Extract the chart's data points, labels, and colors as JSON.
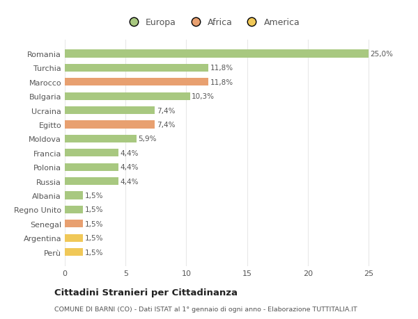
{
  "categories": [
    "Romania",
    "Turchia",
    "Marocco",
    "Bulgaria",
    "Ucraina",
    "Egitto",
    "Moldova",
    "Francia",
    "Polonia",
    "Russia",
    "Albania",
    "Regno Unito",
    "Senegal",
    "Argentina",
    "Perù"
  ],
  "values": [
    25.0,
    11.8,
    11.8,
    10.3,
    7.4,
    7.4,
    5.9,
    4.4,
    4.4,
    4.4,
    1.5,
    1.5,
    1.5,
    1.5,
    1.5
  ],
  "colors": [
    "#a8c880",
    "#a8c880",
    "#e8a070",
    "#a8c880",
    "#a8c880",
    "#e8a070",
    "#a8c880",
    "#a8c880",
    "#a8c880",
    "#a8c880",
    "#a8c880",
    "#a8c880",
    "#e8a070",
    "#f0c858",
    "#f0c858"
  ],
  "labels": [
    "25,0%",
    "11,8%",
    "11,8%",
    "10,3%",
    "7,4%",
    "7,4%",
    "5,9%",
    "4,4%",
    "4,4%",
    "4,4%",
    "1,5%",
    "1,5%",
    "1,5%",
    "1,5%",
    "1,5%"
  ],
  "legend": [
    {
      "label": "Europa",
      "color": "#a8c880"
    },
    {
      "label": "Africa",
      "color": "#e8a070"
    },
    {
      "label": "America",
      "color": "#f0c858"
    }
  ],
  "xlim": [
    0,
    27
  ],
  "xticks": [
    0,
    5,
    10,
    15,
    20,
    25
  ],
  "title": "Cittadini Stranieri per Cittadinanza",
  "subtitle": "COMUNE DI BARNI (CO) - Dati ISTAT al 1° gennaio di ogni anno - Elaborazione TUTTITALIA.IT",
  "background_color": "#ffffff",
  "grid_color": "#e8e8e8",
  "bar_height": 0.55
}
